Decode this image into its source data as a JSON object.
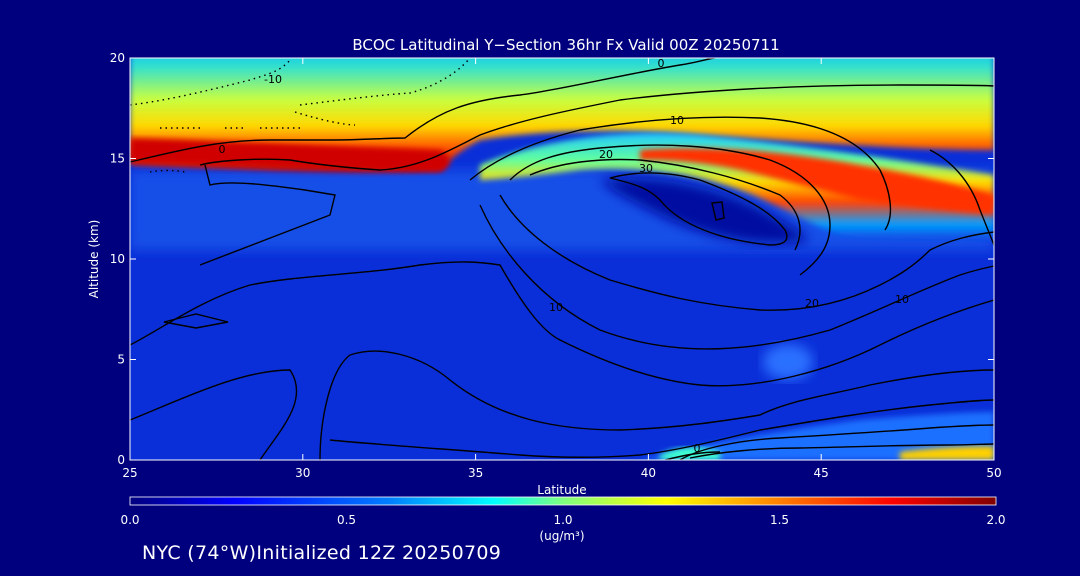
{
  "chart_data": {
    "type": "heatmap",
    "title": "BCOC Latitudinal Y−Section 36hr  Fx Valid 00Z 20250711",
    "xlabel": "Latitude",
    "ylabel": "Altitude (km)",
    "xlim": [
      25,
      50
    ],
    "ylim": [
      0,
      20
    ],
    "xticks": [
      25,
      30,
      35,
      40,
      45,
      50
    ],
    "yticks": [
      0,
      5,
      10,
      15,
      20
    ],
    "colorbar": {
      "min": 0.0,
      "max": 2.0,
      "ticks": [
        "0.0",
        "0.5",
        "1.0",
        "1.5",
        "2.0"
      ],
      "unit_label": "(ug/m³)",
      "colors": [
        "#00007f",
        "#0000ff",
        "#007fff",
        "#00ffff",
        "#7fff7f",
        "#ffff00",
        "#ff7f00",
        "#ff0000",
        "#7f0000"
      ]
    },
    "field_description_points": [
      {
        "lat": 25,
        "alt": 15.4,
        "value": 2.0
      },
      {
        "lat": 30,
        "alt": 15.2,
        "value": 1.9
      },
      {
        "lat": 33,
        "alt": 15.0,
        "value": 1.8
      },
      {
        "lat": 44,
        "alt": 13.5,
        "value": 1.6
      },
      {
        "lat": 48,
        "alt": 12.8,
        "value": 1.5
      },
      {
        "lat": 30,
        "alt": 18.0,
        "value": 1.0
      },
      {
        "lat": 40,
        "alt": 19.0,
        "value": 0.7
      },
      {
        "lat": 35,
        "alt": 8.0,
        "value": 0.1
      },
      {
        "lat": 49,
        "alt": 0.3,
        "value": 1.8
      },
      {
        "lat": 44,
        "alt": 5.0,
        "value": 0.3
      }
    ],
    "contour_labels": [
      "-10",
      "0",
      "10",
      "20",
      "30",
      "10",
      "20",
      "10",
      "0",
      "0"
    ],
    "footer": "NYC (74°W)Initialized 12Z 20250709"
  }
}
